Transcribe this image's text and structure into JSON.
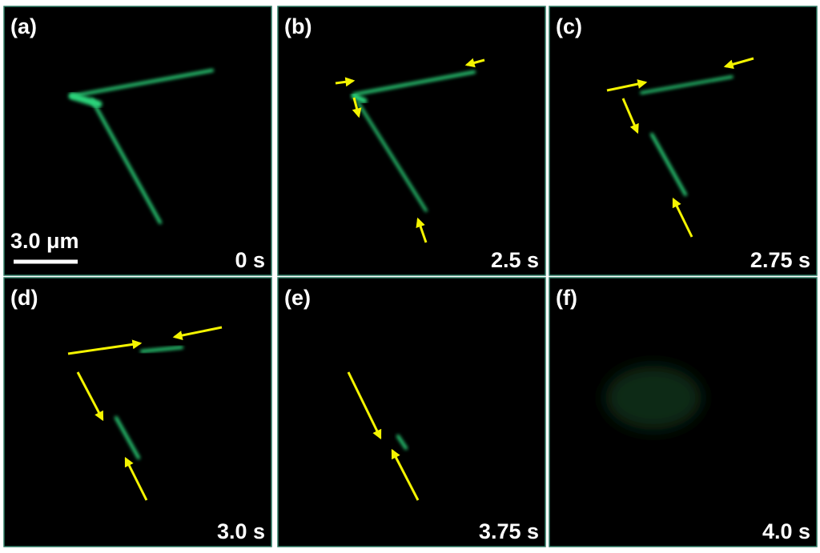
{
  "panels": [
    {
      "label": "(a)",
      "time": "0 s"
    },
    {
      "label": "(b)",
      "time": "2.5 s"
    },
    {
      "label": "(c)",
      "time": "2.75 s"
    },
    {
      "label": "(d)",
      "time": "3.0 s"
    },
    {
      "label": "(e)",
      "time": "3.75 s"
    },
    {
      "label": "(f)",
      "time": "4.0 s"
    }
  ],
  "scale_bar": "3.0 μm"
}
